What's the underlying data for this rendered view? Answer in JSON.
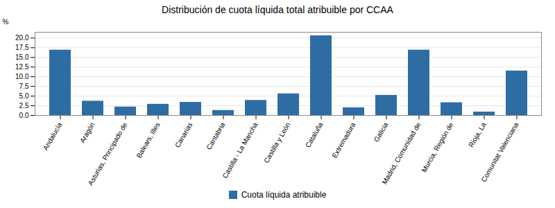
{
  "chart_data": {
    "type": "bar",
    "title": "Distribución de cuota líquida total atribuible por CCAA",
    "categories": [
      "Andalucía",
      "Aragón",
      "Asturias, Principado de",
      "Balears, Illes",
      "Canarias",
      "Cantabria",
      "Castilla - La Mancha",
      "Castilla y León",
      "Cataluña",
      "Extremadura",
      "Galicia",
      "Madrid, Comunidad de",
      "Murcia, Región de",
      "Rioja, La",
      "Comunitat Valenciana"
    ],
    "series": [
      {
        "name": "Cuota líquida atribuible",
        "color": "#2e6da4",
        "values": [
          16.9,
          3.7,
          2.2,
          2.9,
          3.4,
          1.3,
          3.9,
          5.6,
          20.6,
          2.0,
          5.2,
          16.9,
          3.3,
          0.9,
          11.5
        ]
      }
    ],
    "ylabel": "%",
    "ylim": [
      0,
      21.5
    ],
    "yticks": [
      {
        "value": 0,
        "label": "0.0"
      },
      2.5,
      {
        "value": 5,
        "label": "5.0"
      },
      7.5,
      {
        "value": 10,
        "label": "10.0"
      },
      12.5,
      {
        "value": 15,
        "label": "15.0"
      },
      17.5,
      {
        "value": 20,
        "label": "20.0"
      }
    ],
    "grid": true,
    "legend": "bottom"
  }
}
